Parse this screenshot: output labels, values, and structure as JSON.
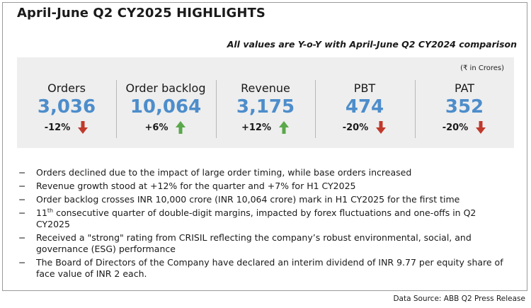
{
  "title": "April-June Q2 CY2025 HIGHLIGHTS",
  "subtitle": "All values are Y-o-Y with April-June Q2 CY2024 comparison",
  "unit_note": "(₹ in Crores)",
  "colors": {
    "value": "#4d8dcb",
    "down": "#c0392b",
    "up": "#5aa84a",
    "panel": "#eeeeee"
  },
  "kpis": [
    {
      "label": "Orders",
      "value": "3,036",
      "change": "-12%",
      "direction": "down",
      "icon": "arrow-down-icon"
    },
    {
      "label": "Order backlog",
      "value": "10,064",
      "change": "+6%",
      "direction": "up",
      "icon": "arrow-up-icon"
    },
    {
      "label": "Revenue",
      "value": "3,175",
      "change": "+12%",
      "direction": "up",
      "icon": "arrow-up-icon"
    },
    {
      "label": "PBT",
      "value": "474",
      "change": "-20%",
      "direction": "down",
      "icon": "arrow-down-icon"
    },
    {
      "label": "PAT",
      "value": "352",
      "change": "-20%",
      "direction": "down",
      "icon": "arrow-down-icon"
    }
  ],
  "bullets": {
    "dash": "−",
    "b1": "Orders declined due to the impact of large order timing, while base orders increased",
    "b2": "Revenue growth stood at +12% for the quarter and +7% for H1 CY2025",
    "b3": "Order backlog crosses INR 10,000 crore (INR 10,064 crore) mark in H1 CY2025 for the first time",
    "b4_num": "11",
    "b4_sup": "th",
    "b4_rest": " consecutive quarter of double-digit margins, impacted by forex fluctuations and one-offs in Q2 CY2025",
    "b5": "Received a \"strong\" rating from CRISIL reflecting the company’s robust environmental, social, and governance (ESG) performance",
    "b6": "The Board of Directors of the Company have declared an interim dividend of INR 9.77 per equity share of face value of INR 2 each."
  },
  "source": "Data Source: ABB Q2 Press Release"
}
